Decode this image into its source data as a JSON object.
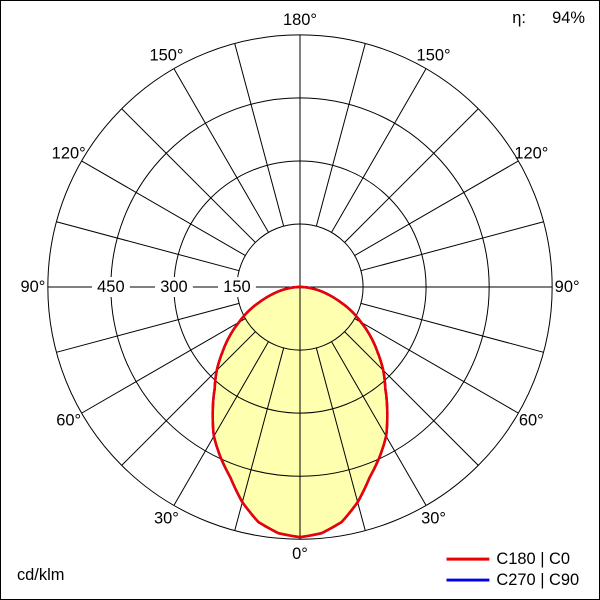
{
  "header": {
    "eta_label": "η:",
    "eta_value": "94%"
  },
  "footer": {
    "unit_label": "cd/klm"
  },
  "legend": [
    {
      "label": "C180 | C0",
      "color": "#ee0000"
    },
    {
      "label": "C270 | C90",
      "color": "#0000ee"
    }
  ],
  "chart_data": {
    "type": "polar_intensity_distribution",
    "unit": "cd/klm",
    "light_output_ratio_percent": 94,
    "angle_labels_deg": [
      0,
      30,
      60,
      90,
      120,
      150,
      180
    ],
    "radial_ticks": [
      150,
      300,
      450
    ],
    "radial_max": 600,
    "gamma_step_deg": 5,
    "gamma_deg": [
      0,
      5,
      10,
      15,
      20,
      25,
      30,
      35,
      40,
      45,
      50,
      55,
      60,
      65,
      70,
      75,
      80,
      85,
      90
    ],
    "series": [
      {
        "name": "C180 | C0",
        "color": "#ee0000",
        "intensity_cd_klm": [
          595,
          588,
          568,
          530,
          483,
          447,
          410,
          362,
          316,
          280,
          241,
          205,
          168,
          135,
          100,
          70,
          45,
          22,
          5
        ]
      },
      {
        "name": "C270 | C90",
        "color": "#0000ee",
        "intensity_cd_klm": [
          595,
          588,
          568,
          530,
          483,
          447,
          410,
          362,
          316,
          280,
          241,
          205,
          168,
          135,
          100,
          70,
          45,
          22,
          5
        ]
      }
    ],
    "fill_color": "#ffffb0",
    "grid_color": "#000000",
    "legend_position": "bottom-right",
    "grid": "on"
  }
}
